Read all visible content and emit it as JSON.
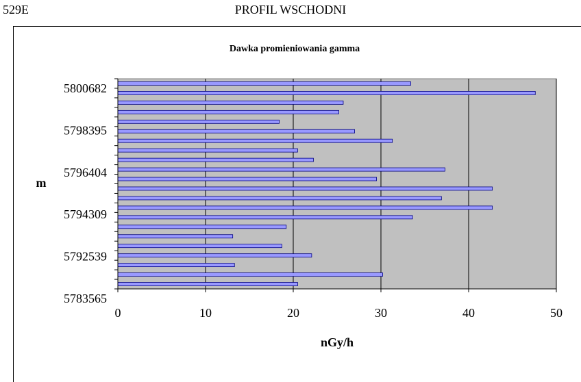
{
  "header": {
    "left": "529E",
    "center": "PROFIL WSCHODNI"
  },
  "chart_data": {
    "type": "bar",
    "orientation": "horizontal",
    "title": "Dawka promieniowania gamma",
    "xlabel": "nGy/h",
    "ylabel": "m",
    "xlim": [
      0,
      50
    ],
    "xticks": [
      0,
      10,
      20,
      30,
      40,
      50
    ],
    "ytick_labels": [
      "5800682",
      "5798395",
      "5796404",
      "5794309",
      "5792539",
      "5783565"
    ],
    "values_top_to_bottom": [
      33.4,
      47.6,
      25.7,
      25.2,
      18.4,
      27.0,
      31.3,
      20.5,
      22.3,
      37.3,
      29.5,
      42.7,
      36.9,
      42.7,
      33.6,
      19.2,
      13.1,
      18.7,
      22.1,
      13.3,
      30.2,
      20.5
    ],
    "bar_color": "#9999ff",
    "plot_background": "#c0c0c0",
    "grid": "vertical"
  }
}
